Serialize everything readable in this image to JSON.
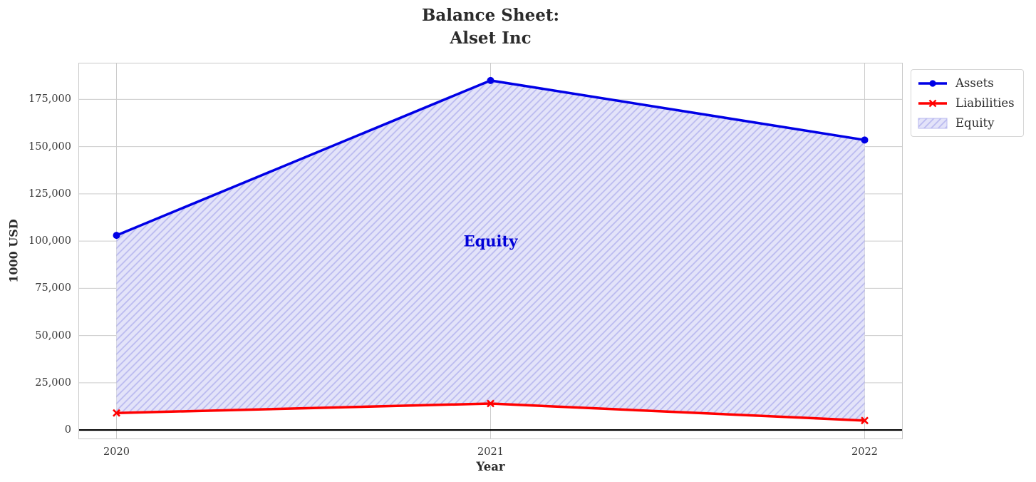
{
  "figure": {
    "title_lines": [
      "Balance Sheet:",
      "Alset Inc"
    ]
  },
  "chart_data": {
    "type": "line",
    "title": "Balance Sheet: Alset Inc",
    "xlabel": "Year",
    "ylabel": "1000 USD",
    "x": [
      2020,
      2021,
      2022
    ],
    "x_labels": [
      "2020",
      "2021",
      "2022"
    ],
    "series": [
      {
        "name": "Assets",
        "color": "#0000e6",
        "marker": "circle",
        "values": [
          103000,
          185000,
          153500
        ]
      },
      {
        "name": "Liabilities",
        "color": "#ff0000",
        "marker": "x",
        "values": [
          9000,
          14000,
          5000
        ]
      }
    ],
    "fill_between": {
      "name": "Equity",
      "between": [
        "Assets",
        "Liabilities"
      ],
      "facecolor": "#e3e3f9",
      "hatch": "/",
      "hatch_color": "#b9b9ef"
    },
    "annotation": {
      "text": "Equity",
      "x": 2021,
      "y": 100000,
      "color": "#0000d8"
    },
    "xlim": [
      2019.9,
      2022.1
    ],
    "ylim": [
      -4500,
      194000
    ],
    "yticks": [
      0,
      25000,
      50000,
      75000,
      100000,
      125000,
      150000,
      175000
    ],
    "ytick_labels": [
      "0",
      "25,000",
      "50,000",
      "75,000",
      "100,000",
      "125,000",
      "150,000",
      "175,000"
    ],
    "grid": true,
    "grid_color": "#cccccc",
    "zero_line_y": 0,
    "legend": {
      "position": "outside-upper-right",
      "entries": [
        "Assets",
        "Liabilities",
        "Equity"
      ]
    }
  }
}
